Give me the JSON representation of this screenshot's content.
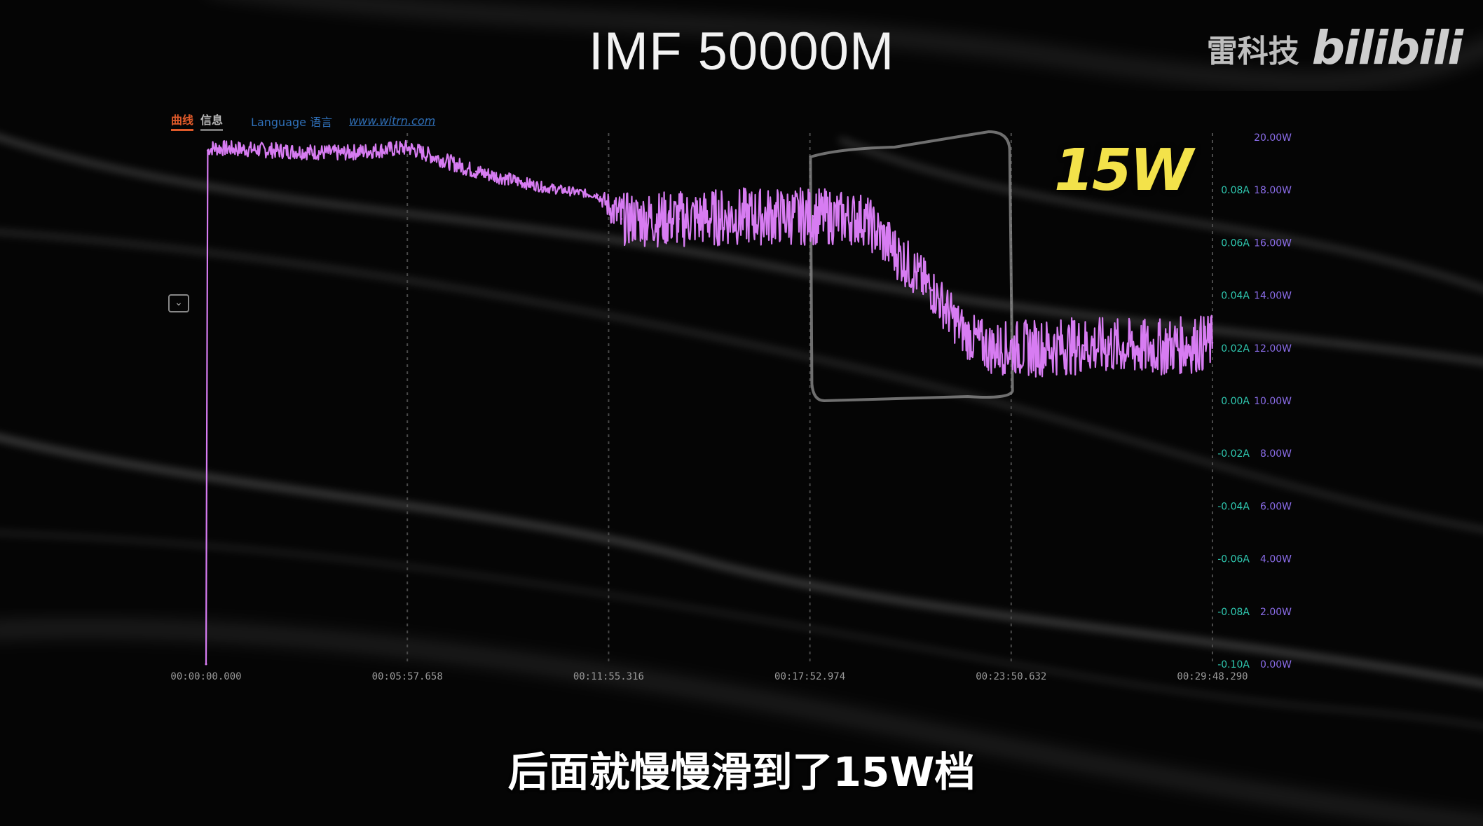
{
  "video": {
    "title": "IMF 50000M",
    "subtitle": "后面就慢慢滑到了15W档",
    "channel": "雷科技",
    "platform_logo": "bilibili"
  },
  "software": {
    "tab_curve": "曲线",
    "tab_info": "信息",
    "language_link": "Language 语言",
    "website_link": "www.witrn.com"
  },
  "annotation": {
    "text": "15W",
    "color": "#f3e24a"
  },
  "colors": {
    "series": "#d77cf2",
    "current_axis": "#2fc8b0",
    "power_axis": "#8a6ce8",
    "grid": "#4a4a4a"
  },
  "chart_data": {
    "type": "line",
    "title": "",
    "xlabel": "",
    "ylabel": "",
    "x_ticks": [
      "00:00:00.000",
      "00:05:57.658",
      "00:11:55.316",
      "00:17:52.974",
      "00:23:50.632",
      "00:29:48.290"
    ],
    "xlim_minutes": [
      0,
      29.805
    ],
    "y_ticks_power": [
      "20.00W",
      "18.00W",
      "16.00W",
      "14.00W",
      "12.00W",
      "10.00W",
      "8.00W",
      "6.00W",
      "4.00W",
      "2.00W",
      "0.00W"
    ],
    "y_ticks_current": [
      "",
      "0.08A",
      "0.06A",
      "0.04A",
      "0.02A",
      "0.00A",
      "-0.02A",
      "-0.04A",
      "-0.06A",
      "-0.08A",
      "-0.10A"
    ],
    "ylim_power": [
      0,
      20
    ],
    "grid": "vertical dashed",
    "highlight_box": {
      "from_minutes": 17.9,
      "to_minutes": 23.8
    },
    "series": [
      {
        "color": "#d77cf2",
        "x_minutes": [
          0,
          0.05,
          0.2,
          2,
          4,
          6,
          8,
          10,
          11.6,
          12.3,
          14,
          16,
          18,
          19.5,
          20.3,
          21.5,
          22.5,
          23.2,
          24.5,
          26,
          28,
          29.8
        ],
        "y_watts": [
          0,
          19.5,
          19.6,
          19.5,
          19.4,
          19.6,
          18.7,
          18.1,
          17.8,
          16.9,
          16.9,
          17.0,
          17.0,
          16.9,
          15.8,
          14.2,
          12.5,
          12.0,
          12.0,
          12.1,
          12.0,
          12.2
        ],
        "noise_band_watts": [
          0,
          0.2,
          0.3,
          0.3,
          0.3,
          0.3,
          0.3,
          0.2,
          0.15,
          1.0,
          1.1,
          1.1,
          1.1,
          1.0,
          1.0,
          0.9,
          0.9,
          1.0,
          1.1,
          1.1,
          1.1,
          1.1
        ]
      }
    ]
  }
}
